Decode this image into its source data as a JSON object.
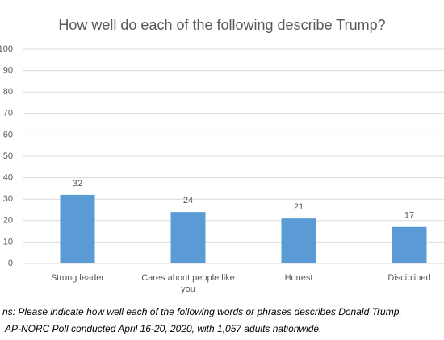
{
  "chart_data": {
    "type": "bar",
    "title": "How well do each of the following describe Trump?",
    "categories": [
      "Strong leader",
      "Cares about people like you",
      "Honest",
      "Disciplined"
    ],
    "values": [
      32,
      24,
      21,
      17
    ],
    "color": "#5b9bd5",
    "ylim": [
      0,
      100
    ],
    "yticks": [
      0,
      10,
      20,
      30,
      40,
      50,
      60,
      70,
      80,
      90,
      100
    ],
    "grid": true,
    "notes": [
      "ns: Please indicate how well each of the following words or phrases describes Donald Trump.",
      "AP-NORC Poll conducted April 16-20, 2020, with 1,057 adults nationwide."
    ]
  }
}
